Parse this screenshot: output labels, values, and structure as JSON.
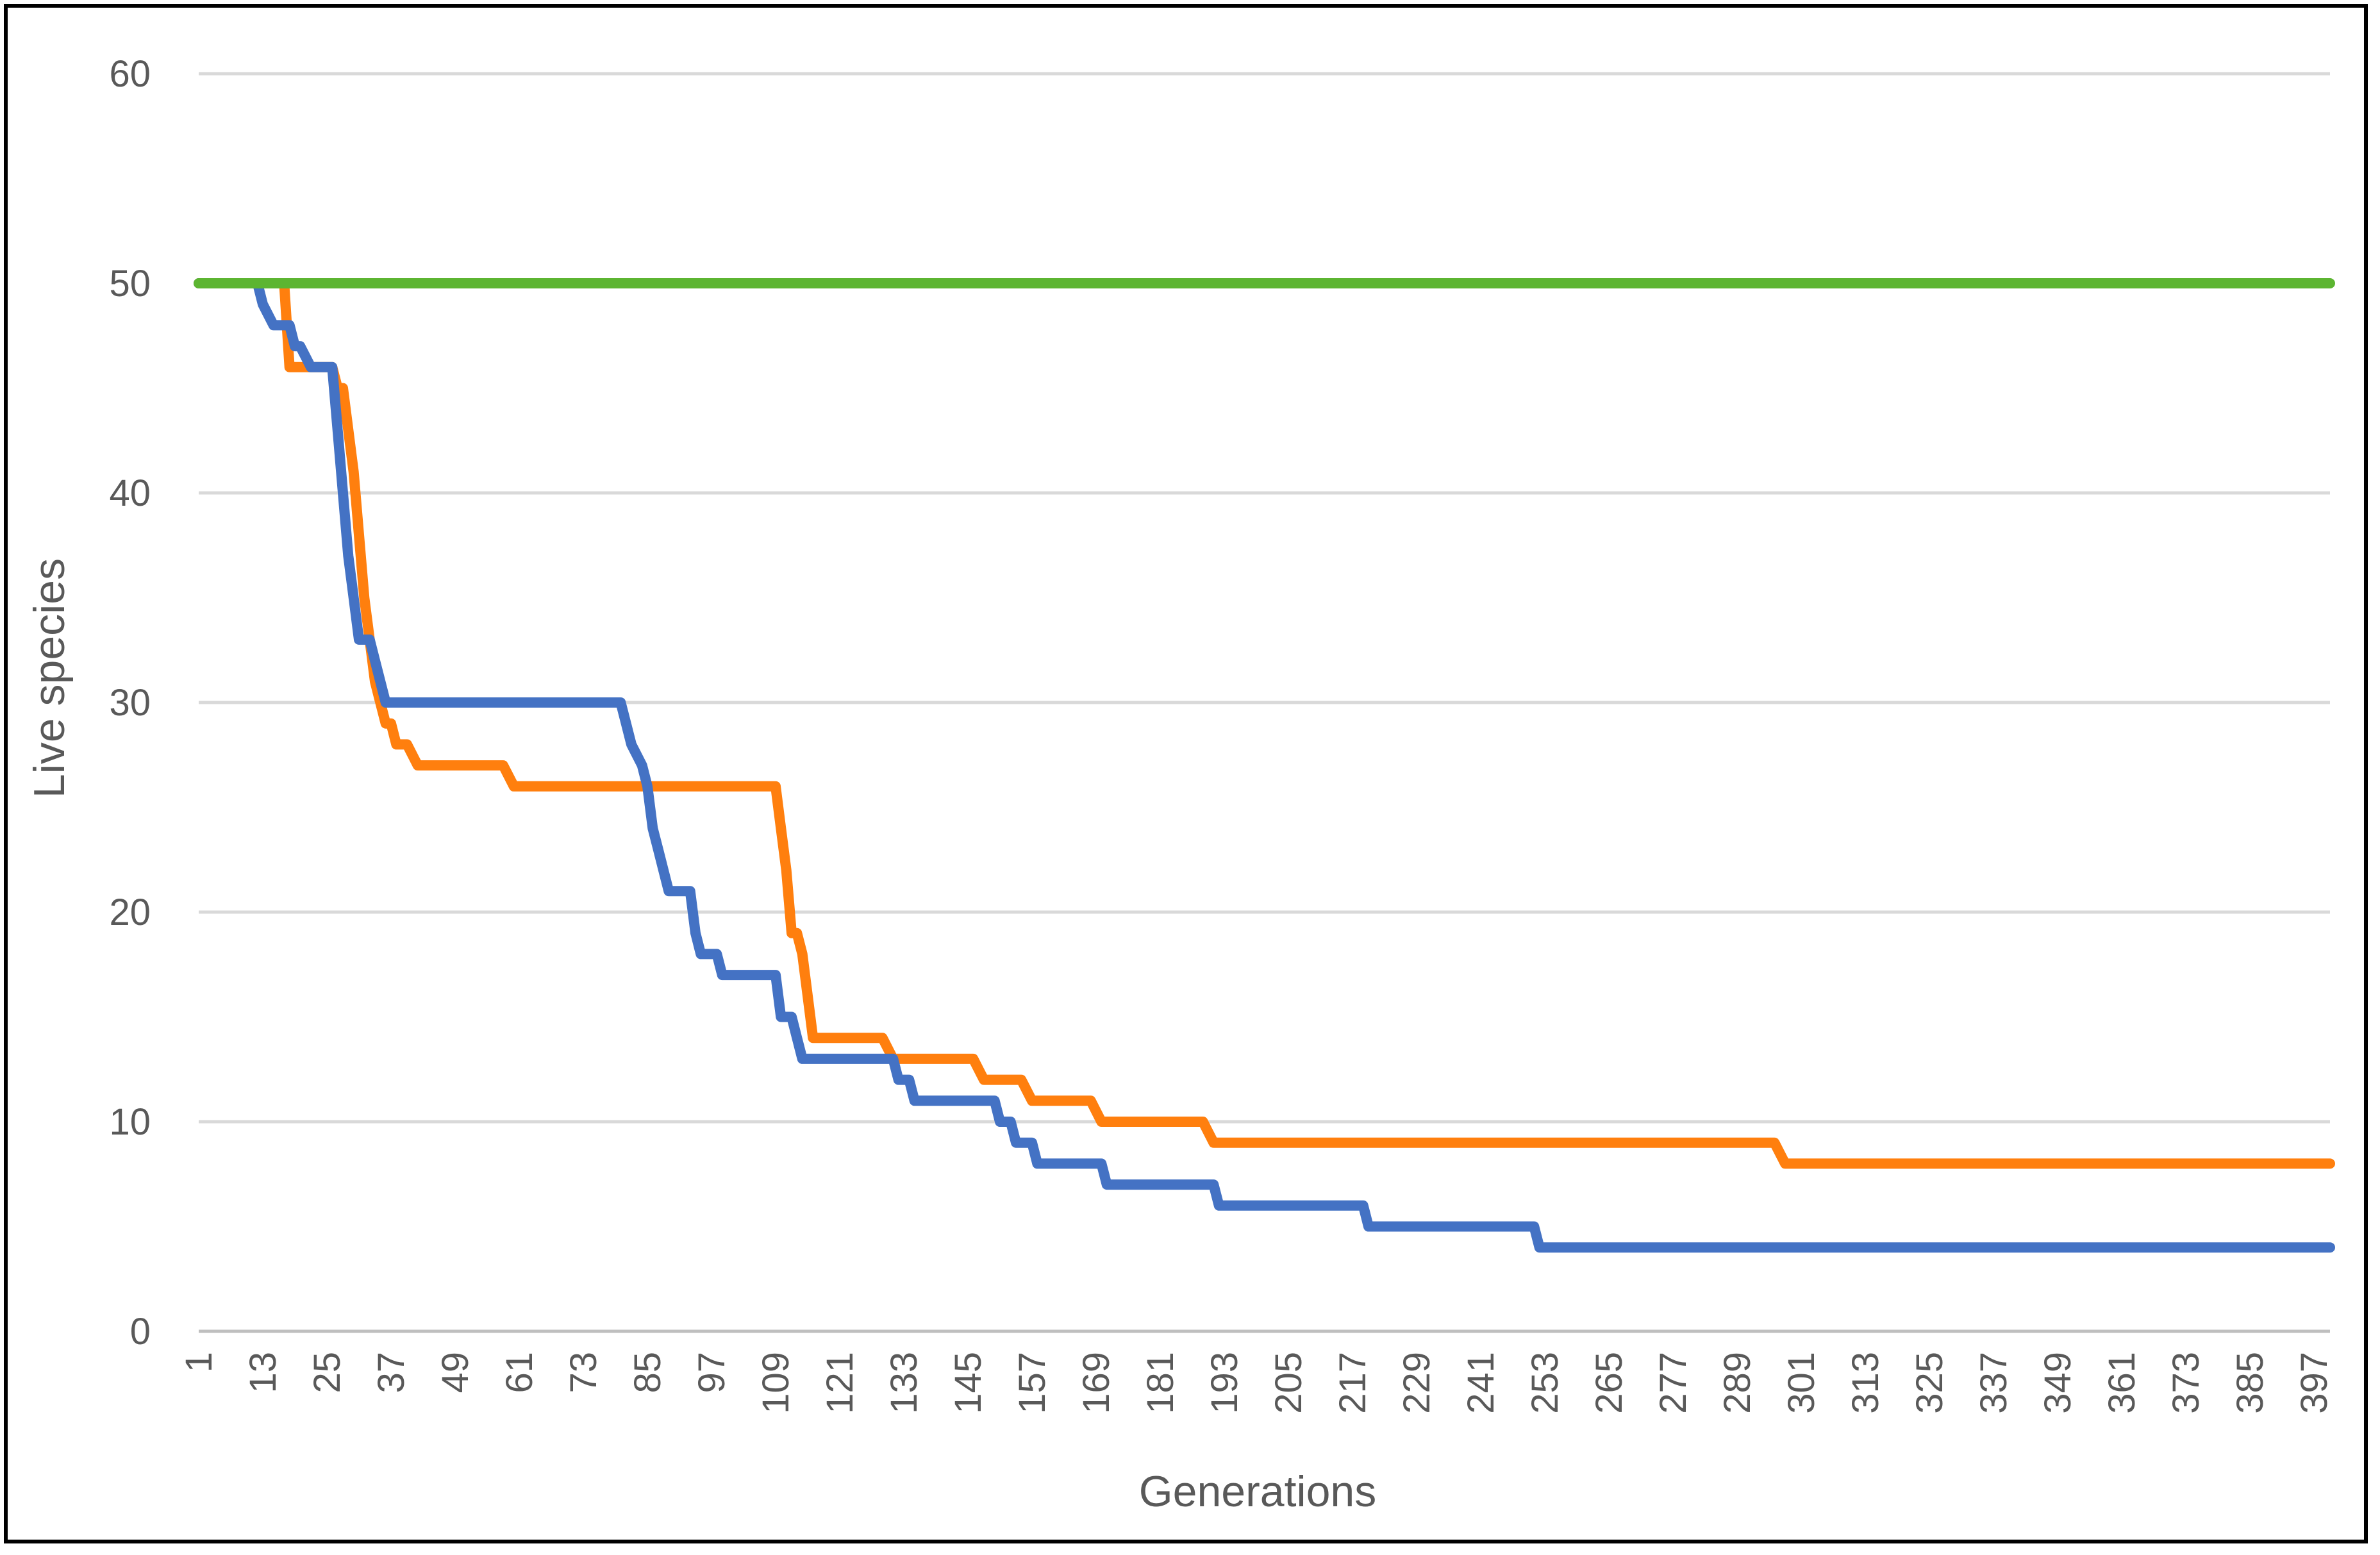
{
  "chart_data": {
    "type": "line",
    "title": "",
    "xlabel": "Generations",
    "ylabel": "Live species",
    "ylim": [
      0,
      60
    ],
    "yticks": [
      0,
      10,
      20,
      30,
      40,
      50,
      60
    ],
    "xlim": [
      1,
      400
    ],
    "xticks": [
      1,
      13,
      25,
      37,
      49,
      61,
      73,
      85,
      97,
      109,
      121,
      133,
      145,
      157,
      169,
      181,
      193,
      205,
      217,
      229,
      241,
      253,
      265,
      277,
      289,
      301,
      313,
      325,
      337,
      349,
      361,
      373,
      385,
      397
    ],
    "grid": true,
    "legend": "none",
    "series": [
      {
        "color": "#ff7f0e",
        "x": [
          1,
          17,
          18,
          26,
          27,
          28,
          30,
          31,
          32,
          33,
          34,
          35,
          36,
          37,
          38,
          40,
          42,
          44,
          58,
          60,
          62,
          109,
          110,
          111,
          112,
          113,
          114,
          115,
          116,
          117,
          118,
          129,
          131,
          146,
          148,
          155,
          157,
          168,
          170,
          189,
          191,
          296,
          298,
          400
        ],
        "y": [
          50,
          50,
          46,
          46,
          45,
          45,
          41,
          38,
          35,
          33,
          31,
          30,
          29,
          29,
          28,
          28,
          27,
          27,
          27,
          26,
          26,
          26,
          24,
          22,
          19,
          19,
          18,
          16,
          14,
          14,
          14,
          14,
          13,
          13,
          12,
          12,
          11,
          11,
          10,
          10,
          9,
          9,
          8,
          8
        ]
      },
      {
        "color": "#4472c4",
        "x": [
          1,
          12,
          13,
          15,
          16,
          18,
          19,
          20,
          22,
          24,
          26,
          27,
          28,
          29,
          30,
          31,
          33,
          34,
          36,
          37,
          39,
          40,
          80,
          81,
          82,
          84,
          85,
          86,
          87,
          88,
          89,
          93,
          94,
          95,
          98,
          99,
          104,
          105,
          109,
          110,
          112,
          113,
          114,
          131,
          132,
          134,
          135,
          150,
          151,
          153,
          154,
          156,
          157,
          158,
          160,
          170,
          171,
          172,
          191,
          192,
          194,
          219,
          220,
          222,
          251,
          252,
          254,
          400
        ],
        "y": [
          50,
          50,
          49,
          48,
          48,
          48,
          47,
          47,
          46,
          46,
          46,
          43,
          40,
          37,
          35,
          33,
          33,
          32,
          30,
          30,
          30,
          30,
          30,
          29,
          28,
          27,
          26,
          24,
          23,
          22,
          21,
          21,
          19,
          18,
          18,
          17,
          17,
          17,
          17,
          15,
          15,
          14,
          13,
          13,
          12,
          12,
          11,
          11,
          10,
          10,
          9,
          9,
          9,
          8,
          8,
          8,
          7,
          7,
          7,
          6,
          6,
          6,
          5,
          5,
          5,
          4,
          4,
          4
        ]
      },
      {
        "color": "#5cb531",
        "x": [
          1,
          400
        ],
        "y": [
          50,
          50
        ]
      }
    ]
  }
}
